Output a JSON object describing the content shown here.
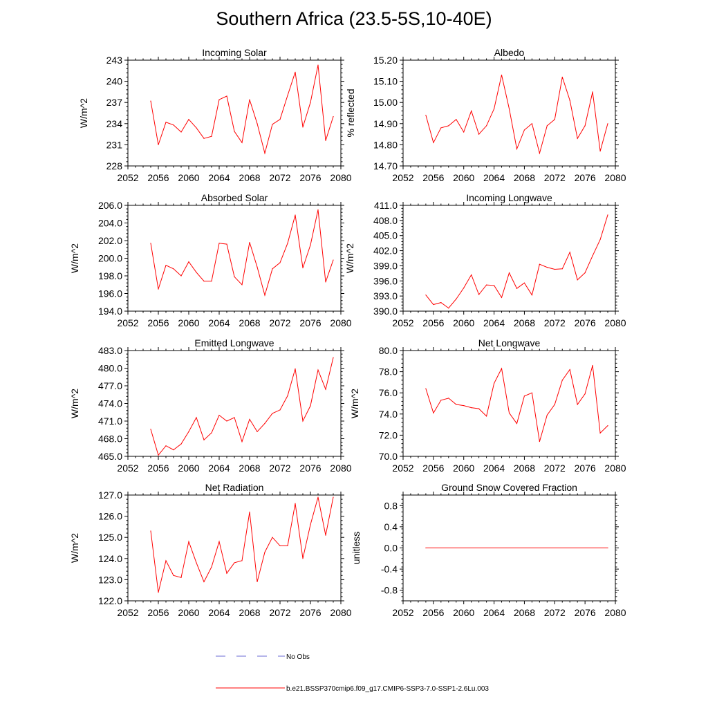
{
  "title": "Southern Africa (23.5-5S,10-40E)",
  "legend": {
    "items": [
      {
        "label": "No Obs",
        "color": "#6b6bd6",
        "style": "dashed"
      },
      {
        "label": "b.e21.BSSP370cmip6.f09_g17.CMIP6-SSP3-7.0-SSP1-2.6Lu.003",
        "color": "#ff0000",
        "style": "solid"
      }
    ]
  },
  "line_color": "#ff0000",
  "chart_data": [
    {
      "type": "line",
      "title": "Incoming Solar",
      "ylabel": "W/m^2",
      "xlabel": "",
      "xlim": [
        2052,
        2080
      ],
      "ylim": [
        228,
        243
      ],
      "xticks": [
        2052,
        2056,
        2060,
        2064,
        2068,
        2072,
        2076,
        2080
      ],
      "xtick_labels": [
        "2052",
        "2056",
        "2060",
        "2064",
        "2068",
        "2072",
        "2076",
        "2080"
      ],
      "yticks": [
        228,
        231,
        234,
        237,
        240,
        243
      ],
      "ytick_labels": [
        "228",
        "231",
        "234",
        "237",
        "240",
        "243"
      ],
      "series": [
        {
          "x": [
            2055,
            2056,
            2057,
            2058,
            2059,
            2060,
            2061,
            2062,
            2063,
            2064,
            2065,
            2066,
            2067,
            2068,
            2069,
            2070,
            2071,
            2072,
            2073,
            2074,
            2075,
            2076,
            2077,
            2078,
            2079
          ],
          "y": [
            237.2,
            231.0,
            234.2,
            233.8,
            232.8,
            234.6,
            233.4,
            231.9,
            232.2,
            237.4,
            237.9,
            232.9,
            231.3,
            237.4,
            234.0,
            229.8,
            233.9,
            234.6,
            238.0,
            241.3,
            233.5,
            237.0,
            242.3,
            231.6,
            235.0
          ]
        }
      ]
    },
    {
      "type": "line",
      "title": "Albedo",
      "ylabel": "% reflected",
      "xlabel": "",
      "xlim": [
        2052,
        2080
      ],
      "ylim": [
        14.7,
        15.2
      ],
      "xticks": [
        2052,
        2056,
        2060,
        2064,
        2068,
        2072,
        2076,
        2080
      ],
      "xtick_labels": [
        "2052",
        "2056",
        "2060",
        "2064",
        "2068",
        "2072",
        "2076",
        "2080"
      ],
      "yticks": [
        14.7,
        14.8,
        14.9,
        15.0,
        15.1,
        15.2
      ],
      "ytick_labels": [
        "14.70",
        "14.80",
        "14.90",
        "15.00",
        "15.10",
        "15.20"
      ],
      "series": [
        {
          "x": [
            2055,
            2056,
            2057,
            2058,
            2059,
            2060,
            2061,
            2062,
            2063,
            2064,
            2065,
            2066,
            2067,
            2068,
            2069,
            2070,
            2071,
            2072,
            2073,
            2074,
            2075,
            2076,
            2077,
            2078,
            2079
          ],
          "y": [
            14.94,
            14.81,
            14.88,
            14.89,
            14.92,
            14.86,
            14.96,
            14.85,
            14.89,
            14.97,
            15.13,
            14.97,
            14.78,
            14.87,
            14.9,
            14.76,
            14.89,
            14.92,
            15.12,
            15.01,
            14.83,
            14.89,
            15.05,
            14.77,
            14.9
          ]
        }
      ]
    },
    {
      "type": "line",
      "title": "Absorbed Solar",
      "ylabel": "W/m^2",
      "xlabel": "",
      "xlim": [
        2052,
        2080
      ],
      "ylim": [
        194,
        206
      ],
      "xticks": [
        2052,
        2056,
        2060,
        2064,
        2068,
        2072,
        2076,
        2080
      ],
      "xtick_labels": [
        "2052",
        "2056",
        "2060",
        "2064",
        "2068",
        "2072",
        "2076",
        "2080"
      ],
      "yticks": [
        194,
        196,
        198,
        200,
        202,
        204,
        206
      ],
      "ytick_labels": [
        "194.0",
        "196.0",
        "198.0",
        "200.0",
        "202.0",
        "204.0",
        "206.0"
      ],
      "series": [
        {
          "x": [
            2055,
            2056,
            2057,
            2058,
            2059,
            2060,
            2061,
            2062,
            2063,
            2064,
            2065,
            2066,
            2067,
            2068,
            2069,
            2070,
            2071,
            2072,
            2073,
            2074,
            2075,
            2076,
            2077,
            2078,
            2079
          ],
          "y": [
            201.7,
            196.5,
            199.2,
            198.8,
            198.0,
            199.6,
            198.4,
            197.4,
            197.4,
            201.7,
            201.6,
            197.9,
            197.0,
            201.8,
            199.0,
            195.8,
            198.8,
            199.5,
            201.7,
            204.9,
            198.9,
            201.5,
            205.5,
            197.3,
            199.8
          ]
        }
      ]
    },
    {
      "type": "line",
      "title": "Incoming Longwave",
      "ylabel": "W/m^2",
      "xlabel": "",
      "xlim": [
        2052,
        2080
      ],
      "ylim": [
        390,
        411
      ],
      "xticks": [
        2052,
        2056,
        2060,
        2064,
        2068,
        2072,
        2076,
        2080
      ],
      "xtick_labels": [
        "2052",
        "2056",
        "2060",
        "2064",
        "2068",
        "2072",
        "2076",
        "2080"
      ],
      "yticks": [
        390,
        393,
        396,
        399,
        402,
        405,
        408,
        411
      ],
      "ytick_labels": [
        "390.0",
        "393.0",
        "396.0",
        "399.0",
        "402.0",
        "405.0",
        "408.0",
        "411.0"
      ],
      "series": [
        {
          "x": [
            2055,
            2056,
            2057,
            2058,
            2059,
            2060,
            2061,
            2062,
            2063,
            2064,
            2065,
            2066,
            2067,
            2068,
            2069,
            2070,
            2071,
            2072,
            2073,
            2074,
            2075,
            2076,
            2077,
            2078,
            2079
          ],
          "y": [
            393.2,
            391.3,
            391.7,
            390.6,
            392.4,
            394.6,
            397.2,
            393.3,
            395.2,
            395.1,
            392.7,
            397.6,
            394.5,
            395.6,
            393.2,
            399.3,
            398.7,
            398.3,
            398.4,
            401.7,
            396.2,
            397.6,
            401.0,
            404.2,
            409.1
          ]
        }
      ]
    },
    {
      "type": "line",
      "title": "Emitted Longwave",
      "ylabel": "W/m^2",
      "xlabel": "",
      "xlim": [
        2052,
        2080
      ],
      "ylim": [
        465,
        483
      ],
      "xticks": [
        2052,
        2056,
        2060,
        2064,
        2068,
        2072,
        2076,
        2080
      ],
      "xtick_labels": [
        "2052",
        "2056",
        "2060",
        "2064",
        "2068",
        "2072",
        "2076",
        "2080"
      ],
      "yticks": [
        465,
        468,
        471,
        474,
        477,
        480,
        483
      ],
      "ytick_labels": [
        "465.0",
        "468.0",
        "471.0",
        "474.0",
        "477.0",
        "480.0",
        "483.0"
      ],
      "series": [
        {
          "x": [
            2055,
            2056,
            2057,
            2058,
            2059,
            2060,
            2061,
            2062,
            2063,
            2064,
            2065,
            2066,
            2067,
            2068,
            2069,
            2070,
            2071,
            2072,
            2073,
            2074,
            2075,
            2076,
            2077,
            2078,
            2079
          ],
          "y": [
            469.6,
            465.2,
            466.8,
            466.1,
            467.1,
            469.2,
            471.6,
            467.8,
            469.0,
            472.0,
            471.0,
            471.6,
            467.5,
            471.3,
            469.2,
            470.6,
            472.3,
            472.9,
            475.3,
            479.9,
            471.0,
            473.6,
            479.7,
            476.4,
            481.8
          ]
        }
      ]
    },
    {
      "type": "line",
      "title": "Net Longwave",
      "ylabel": "W/m^2",
      "xlabel": "",
      "xlim": [
        2052,
        2080
      ],
      "ylim": [
        70,
        80
      ],
      "xticks": [
        2052,
        2056,
        2060,
        2064,
        2068,
        2072,
        2076,
        2080
      ],
      "xtick_labels": [
        "2052",
        "2056",
        "2060",
        "2064",
        "2068",
        "2072",
        "2076",
        "2080"
      ],
      "yticks": [
        70,
        72,
        74,
        76,
        78,
        80
      ],
      "ytick_labels": [
        "70.0",
        "72.0",
        "74.0",
        "76.0",
        "78.0",
        "80.0"
      ],
      "series": [
        {
          "x": [
            2055,
            2056,
            2057,
            2058,
            2059,
            2060,
            2061,
            2062,
            2063,
            2064,
            2065,
            2066,
            2067,
            2068,
            2069,
            2070,
            2071,
            2072,
            2073,
            2074,
            2075,
            2076,
            2077,
            2078,
            2079
          ],
          "y": [
            76.4,
            74.1,
            75.3,
            75.5,
            74.9,
            74.8,
            74.6,
            74.5,
            73.8,
            76.9,
            78.3,
            74.1,
            73.1,
            75.7,
            76.0,
            71.4,
            73.9,
            74.9,
            77.2,
            78.2,
            74.9,
            75.9,
            78.6,
            72.2,
            72.9
          ]
        }
      ]
    },
    {
      "type": "line",
      "title": "Net Radiation",
      "ylabel": "W/m^2",
      "xlabel": "",
      "xlim": [
        2052,
        2080
      ],
      "ylim": [
        122,
        127
      ],
      "xticks": [
        2052,
        2056,
        2060,
        2064,
        2068,
        2072,
        2076,
        2080
      ],
      "xtick_labels": [
        "2052",
        "2056",
        "2060",
        "2064",
        "2068",
        "2072",
        "2076",
        "2080"
      ],
      "yticks": [
        122,
        123,
        124,
        125,
        126,
        127
      ],
      "ytick_labels": [
        "122.0",
        "123.0",
        "124.0",
        "125.0",
        "126.0",
        "127.0"
      ],
      "series": [
        {
          "x": [
            2055,
            2056,
            2057,
            2058,
            2059,
            2060,
            2061,
            2062,
            2063,
            2064,
            2065,
            2066,
            2067,
            2068,
            2069,
            2070,
            2071,
            2072,
            2073,
            2074,
            2075,
            2076,
            2077,
            2078,
            2079
          ],
          "y": [
            125.3,
            122.4,
            123.9,
            123.2,
            123.1,
            124.8,
            123.8,
            122.9,
            123.6,
            124.8,
            123.3,
            123.8,
            123.9,
            126.2,
            122.9,
            124.3,
            125.0,
            124.6,
            124.6,
            126.6,
            124.0,
            125.6,
            126.9,
            125.1,
            126.9
          ]
        }
      ]
    },
    {
      "type": "line",
      "title": "Ground Snow Covered Fraction",
      "ylabel": "unitless",
      "xlabel": "",
      "xlim": [
        2052,
        2080
      ],
      "ylim": [
        -1.0,
        1.0
      ],
      "xticks": [
        2052,
        2056,
        2060,
        2064,
        2068,
        2072,
        2076,
        2080
      ],
      "xtick_labels": [
        "2052",
        "2056",
        "2060",
        "2064",
        "2068",
        "2072",
        "2076",
        "2080"
      ],
      "yticks": [
        -0.8,
        -0.4,
        0.0,
        0.4,
        0.8
      ],
      "ytick_labels": [
        "-0.8",
        "-0.4",
        "0.0",
        "0.4",
        "0.8"
      ],
      "series": [
        {
          "x": [
            2055,
            2079
          ],
          "y": [
            0.0,
            0.0
          ]
        }
      ]
    }
  ]
}
